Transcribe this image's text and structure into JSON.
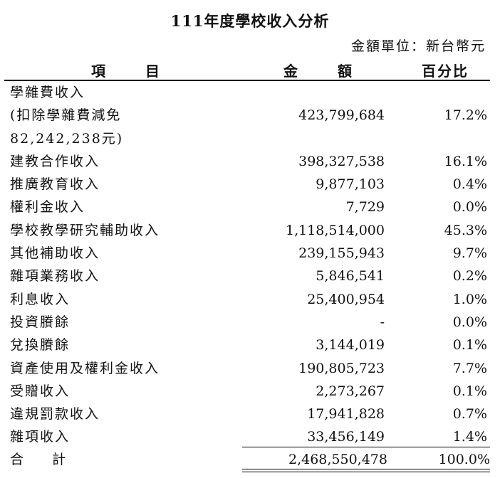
{
  "title": "111年度學校收入分析",
  "unit": "金額單位：新台幣元",
  "headers": {
    "item": "項目",
    "amount": "金額",
    "pct": "百分比"
  },
  "rows": [
    {
      "item": "學雜費收入",
      "amount": "",
      "pct": ""
    },
    {
      "item": "(扣除學雜費減免",
      "amount": "423,799,684",
      "pct": "17.2%"
    },
    {
      "item": "82,242,238元)",
      "amount": "",
      "pct": ""
    },
    {
      "item": "建教合作收入",
      "amount": "398,327,538",
      "pct": "16.1%"
    },
    {
      "item": "推廣教育收入",
      "amount": "9,877,103",
      "pct": "0.4%"
    },
    {
      "item": "權利金收入",
      "amount": "7,729",
      "pct": "0.0%"
    },
    {
      "item": "學校教學研究輔助收入",
      "amount": "1,118,514,000",
      "pct": "45.3%"
    },
    {
      "item": "其他補助收入",
      "amount": "239,155,943",
      "pct": "9.7%"
    },
    {
      "item": "雜項業務收入",
      "amount": "5,846,541",
      "pct": "0.2%"
    },
    {
      "item": "利息收入",
      "amount": "25,400,954",
      "pct": "1.0%"
    },
    {
      "item": "投資賸餘",
      "amount": "-",
      "pct": "0.0%"
    },
    {
      "item": "兌換賸餘",
      "amount": "3,144,019",
      "pct": "0.1%"
    },
    {
      "item": "資產使用及權利金收入",
      "amount": "190,805,723",
      "pct": "7.7%"
    },
    {
      "item": "受贈收入",
      "amount": "2,273,267",
      "pct": "0.1%"
    },
    {
      "item": "違規罰款收入",
      "amount": "17,941,828",
      "pct": "0.7%"
    },
    {
      "item": "雜項收入",
      "amount": "33,456,149",
      "pct": "1.4%"
    }
  ],
  "total": {
    "label": "合計",
    "amount": "2,468,550,478",
    "pct": "100.0%"
  }
}
